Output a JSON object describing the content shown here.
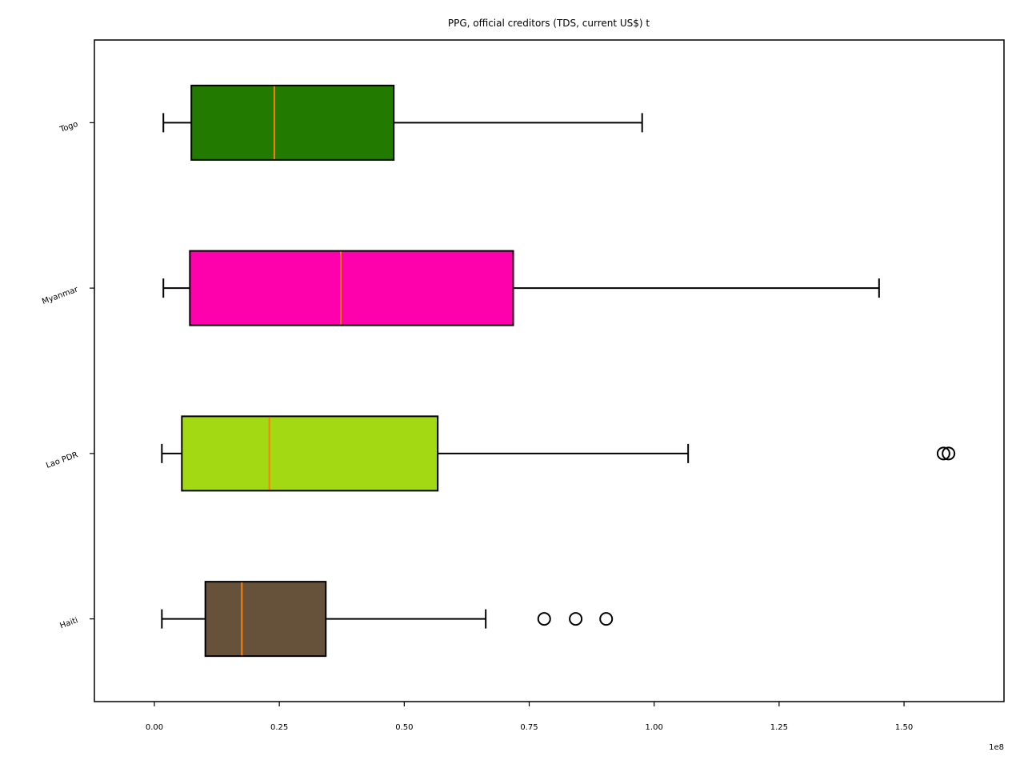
{
  "chart_data": {
    "type": "boxplot",
    "orientation": "horizontal",
    "title": "PPG, official creditors (TDS, current US$) t",
    "xlabel": "",
    "ylabel": "",
    "x_offset_label": "1e8",
    "xlim": [
      -12000000,
      170000000
    ],
    "x_ticks": [
      0,
      25000000,
      50000000,
      75000000,
      100000000,
      125000000,
      150000000
    ],
    "x_tick_labels": [
      "0.00",
      "0.25",
      "0.50",
      "0.75",
      "1.00",
      "1.25",
      "1.50"
    ],
    "grid": false,
    "legend": "none",
    "median_color": "#ff7f0e",
    "series": [
      {
        "name": "Haiti",
        "color": "#66523a",
        "whisker_low": 1500000,
        "q1": 10200000,
        "median": 17500000,
        "q3": 34300000,
        "whisker_high": 66300000,
        "outliers": [
          78000000,
          84300000,
          90400000
        ]
      },
      {
        "name": "Lao PDR",
        "color": "#a2d912",
        "whisker_low": 1500000,
        "q1": 5500000,
        "median": 23000000,
        "q3": 56700000,
        "whisker_high": 106800000,
        "outliers": [
          157900000,
          158900000
        ]
      },
      {
        "name": "Myanmar",
        "color": "#ff00ad",
        "whisker_low": 1800000,
        "q1": 7100000,
        "median": 37300000,
        "q3": 71800000,
        "whisker_high": 145000000,
        "outliers": []
      },
      {
        "name": "Togo",
        "color": "#237a00",
        "whisker_low": 1800000,
        "q1": 7400000,
        "median": 24000000,
        "q3": 47900000,
        "whisker_high": 97600000,
        "outliers": []
      }
    ]
  }
}
